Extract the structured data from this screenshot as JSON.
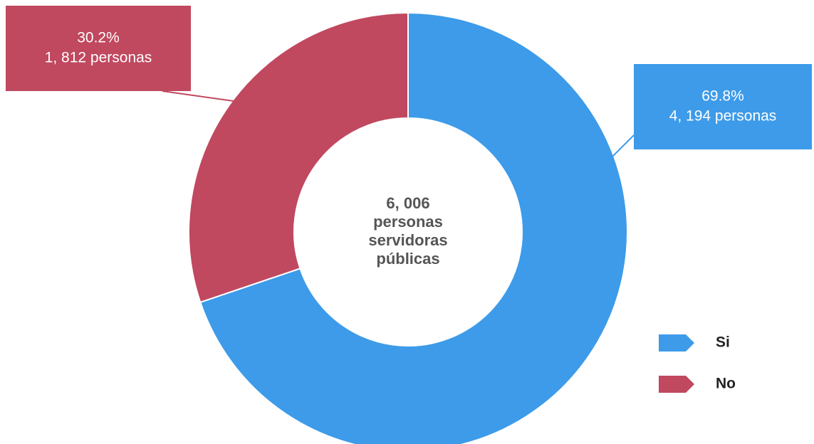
{
  "chart_data": {
    "type": "donut",
    "categories": [
      "Si",
      "No"
    ],
    "values": [
      69.8,
      30.2
    ],
    "value_labels": [
      "69.8%",
      "30.2%"
    ],
    "count_labels": [
      "4, 194 personas",
      "1, 812 personas"
    ],
    "colors": [
      "#3d9be9",
      "#c0485f"
    ],
    "center_label": [
      "6, 006",
      "personas",
      "servidoras",
      "públicas"
    ],
    "legend": "lower right"
  }
}
